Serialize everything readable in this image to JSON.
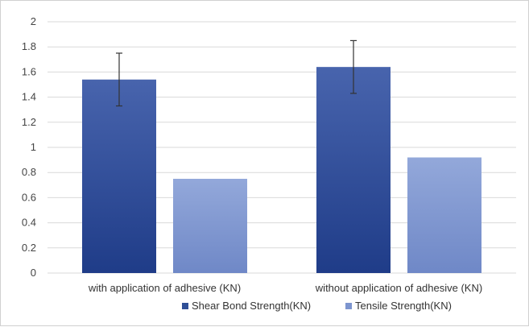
{
  "chart_data": {
    "type": "bar",
    "title": "",
    "xlabel": "",
    "ylabel": "",
    "categories": [
      "with application of adhesive (KN)",
      "without application of adhesive (KN)"
    ],
    "series": [
      {
        "name": "Shear Bond Strength(KN)",
        "values": [
          1.54,
          1.64
        ],
        "error": [
          0.21,
          0.21
        ],
        "color": "#2f4f97"
      },
      {
        "name": "Tensile Strength(KN)",
        "values": [
          0.75,
          0.92
        ],
        "color": "#7d95cf"
      }
    ],
    "ylim": [
      0,
      2
    ],
    "yticks": [
      0,
      0.2,
      0.4,
      0.6,
      0.8,
      1,
      1.2,
      1.4,
      1.6,
      1.8,
      2
    ],
    "ytick_labels": [
      "0",
      "0.2",
      "0.4",
      "0.6",
      "0.8",
      "1",
      "1.2",
      "1.4",
      "1.6",
      "1.8",
      "2"
    ],
    "grid": true,
    "legend_position": "bottom",
    "gridline_color": "#d9d9d9"
  }
}
